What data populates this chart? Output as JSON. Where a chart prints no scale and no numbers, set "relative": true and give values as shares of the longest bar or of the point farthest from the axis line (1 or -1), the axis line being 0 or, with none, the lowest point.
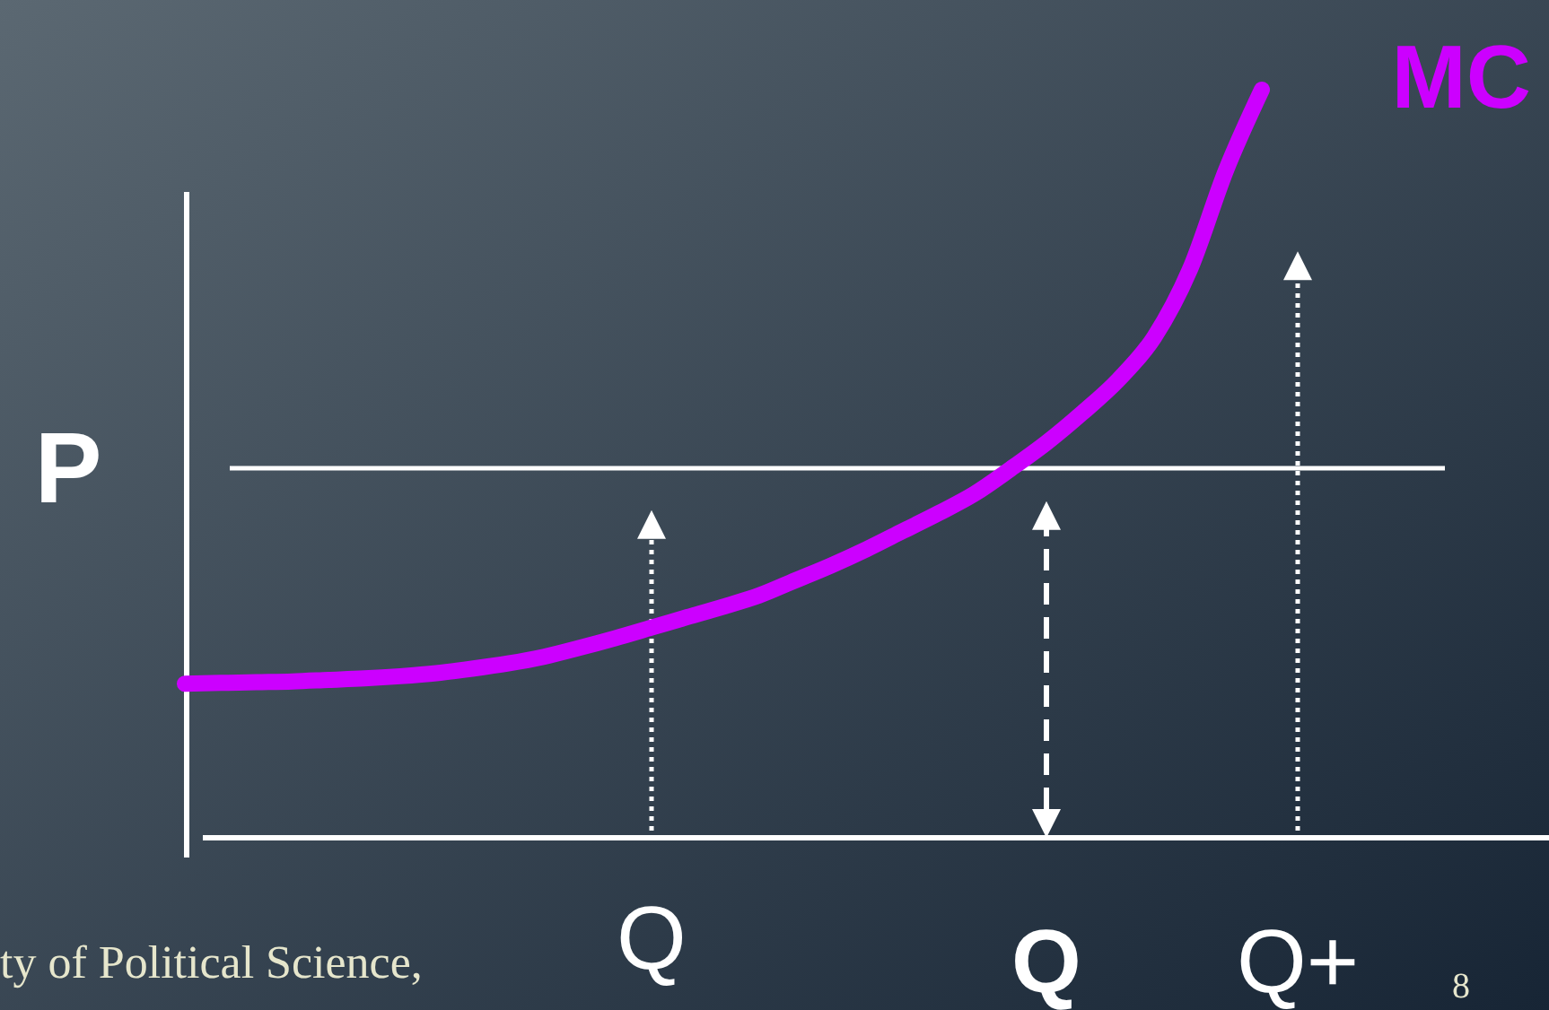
{
  "chart_data": {
    "type": "line",
    "relative": true,
    "ylabel": "P",
    "categories": [
      null,
      null,
      null,
      null,
      null,
      null,
      null,
      null,
      null,
      null,
      null,
      null,
      null,
      "Q",
      null,
      null,
      null,
      null,
      null,
      null,
      null,
      null,
      null,
      null,
      "Q",
      null,
      null,
      null,
      null,
      null,
      null,
      "Q+",
      null,
      null,
      null,
      null,
      null,
      null
    ],
    "series": [
      {
        "name": "MC",
        "color": "#cc00ff",
        "values": [
          0.206,
          0.207,
          0.208,
          0.209,
          0.211,
          0.213,
          0.216,
          0.22,
          0.226,
          0.233,
          0.242,
          0.254,
          0.267,
          0.281,
          0.295,
          0.309,
          0.324,
          0.344,
          0.364,
          0.386,
          0.41,
          0.434,
          0.46,
          0.493,
          0.528,
          0.568,
          0.612,
          0.669,
          0.76,
          0.892,
          1.0,
          null,
          null,
          null,
          null,
          null,
          null,
          null
        ]
      }
    ],
    "ref_lines": [
      {
        "axis": "y",
        "value": 0.494,
        "color": "#ffffff"
      }
    ],
    "annotations": [
      "ty of Political Science,",
      "8"
    ]
  }
}
